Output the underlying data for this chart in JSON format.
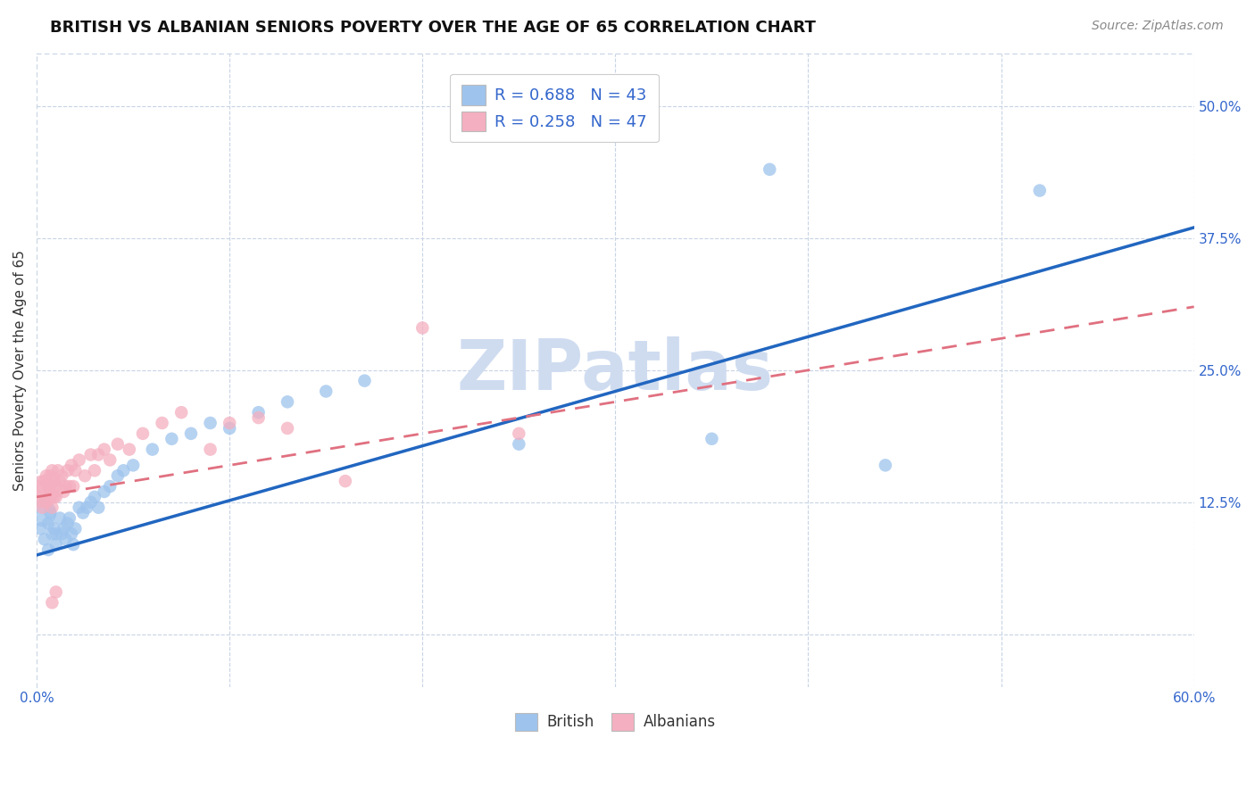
{
  "title": "BRITISH VS ALBANIAN SENIORS POVERTY OVER THE AGE OF 65 CORRELATION CHART",
  "source": "Source: ZipAtlas.com",
  "ylabel": "Seniors Poverty Over the Age of 65",
  "xlim": [
    0.0,
    0.6
  ],
  "ylim": [
    -0.05,
    0.55
  ],
  "xtick_positions": [
    0.0,
    0.1,
    0.2,
    0.3,
    0.4,
    0.5,
    0.6
  ],
  "xticklabels": [
    "0.0%",
    "",
    "",
    "",
    "",
    "",
    "60.0%"
  ],
  "ytick_positions": [
    0.0,
    0.125,
    0.25,
    0.375,
    0.5
  ],
  "yticklabels": [
    "",
    "12.5%",
    "25.0%",
    "37.5%",
    "50.0%"
  ],
  "british_R": 0.688,
  "british_N": 43,
  "albanian_R": 0.258,
  "albanian_N": 47,
  "british_color": "#9ec4ed",
  "albanian_color": "#f4afc0",
  "trendline_british_color": "#2166c0",
  "trendline_albanian_color": "#e07080",
  "watermark_color": "#cfdcf0",
  "background_color": "#ffffff",
  "grid_color": "#c8d4e4",
  "british_x": [
    0.002,
    0.004,
    0.006,
    0.006,
    0.007,
    0.008,
    0.009,
    0.01,
    0.01,
    0.012,
    0.013,
    0.014,
    0.015,
    0.016,
    0.017,
    0.018,
    0.019,
    0.02,
    0.022,
    0.024,
    0.026,
    0.028,
    0.03,
    0.032,
    0.035,
    0.038,
    0.042,
    0.045,
    0.05,
    0.06,
    0.07,
    0.08,
    0.09,
    0.1,
    0.115,
    0.13,
    0.15,
    0.17,
    0.25,
    0.35,
    0.38,
    0.44,
    0.52
  ],
  "british_y": [
    0.1,
    0.09,
    0.105,
    0.08,
    0.115,
    0.095,
    0.1,
    0.085,
    0.095,
    0.11,
    0.095,
    0.1,
    0.09,
    0.105,
    0.11,
    0.095,
    0.085,
    0.1,
    0.12,
    0.115,
    0.12,
    0.125,
    0.13,
    0.12,
    0.135,
    0.14,
    0.15,
    0.155,
    0.16,
    0.175,
    0.185,
    0.19,
    0.2,
    0.195,
    0.21,
    0.22,
    0.23,
    0.24,
    0.18,
    0.185,
    0.44,
    0.16,
    0.42
  ],
  "british_large_x": [
    0.003
  ],
  "british_large_y": [
    0.115
  ],
  "british_large_s": 500,
  "albanian_x": [
    0.001,
    0.002,
    0.003,
    0.004,
    0.005,
    0.005,
    0.006,
    0.006,
    0.007,
    0.007,
    0.008,
    0.008,
    0.009,
    0.009,
    0.01,
    0.01,
    0.011,
    0.012,
    0.013,
    0.014,
    0.015,
    0.016,
    0.017,
    0.018,
    0.019,
    0.02,
    0.022,
    0.025,
    0.028,
    0.03,
    0.032,
    0.035,
    0.038,
    0.042,
    0.048,
    0.055,
    0.065,
    0.075,
    0.09,
    0.1,
    0.115,
    0.13,
    0.16,
    0.2,
    0.25,
    0.01,
    0.008
  ],
  "albanian_y": [
    0.13,
    0.14,
    0.12,
    0.145,
    0.125,
    0.15,
    0.13,
    0.14,
    0.135,
    0.15,
    0.12,
    0.155,
    0.13,
    0.145,
    0.14,
    0.13,
    0.155,
    0.145,
    0.15,
    0.135,
    0.14,
    0.155,
    0.14,
    0.16,
    0.14,
    0.155,
    0.165,
    0.15,
    0.17,
    0.155,
    0.17,
    0.175,
    0.165,
    0.18,
    0.175,
    0.19,
    0.2,
    0.21,
    0.175,
    0.2,
    0.205,
    0.195,
    0.145,
    0.29,
    0.19,
    0.04,
    0.03
  ],
  "albanian_large_x": [
    0.003
  ],
  "albanian_large_y": [
    0.135
  ],
  "albanian_large_s": 700,
  "british_trend_x": [
    0.0,
    0.6
  ],
  "british_trend_y": [
    0.075,
    0.385
  ],
  "albanian_trend_x": [
    0.0,
    0.6
  ],
  "albanian_trend_y": [
    0.13,
    0.31
  ],
  "legend1_label1": "R = 0.688   N = 43",
  "legend1_label2": "R = 0.258   N = 47",
  "legend2_label1": "British",
  "legend2_label2": "Albanians",
  "title_fontsize": 13,
  "label_fontsize": 11,
  "tick_fontsize": 11,
  "source_fontsize": 10,
  "legend_fontsize": 13
}
